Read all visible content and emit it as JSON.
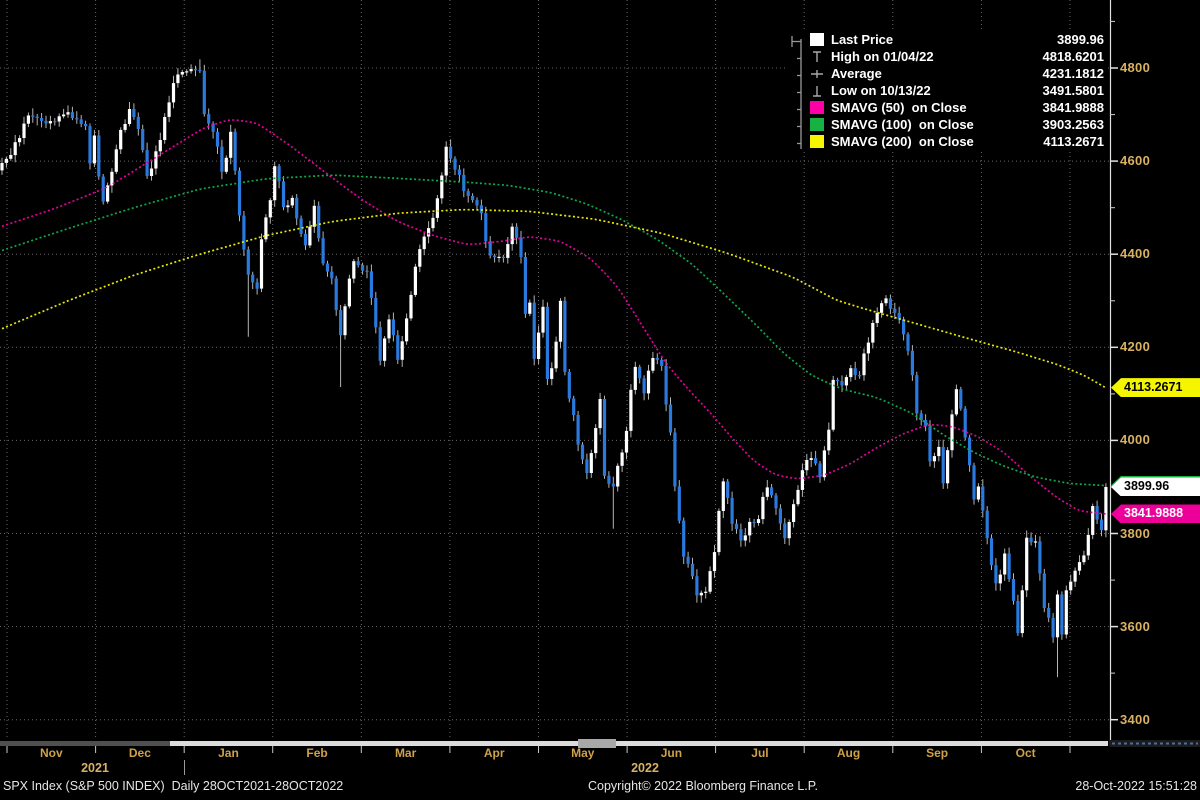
{
  "legend": {
    "rows": [
      {
        "name": "last-price",
        "marker": "square",
        "color": "#ffffff",
        "label": "Last Price",
        "value": "3899.96"
      },
      {
        "name": "high",
        "marker": "high",
        "color": "#a8a8a8",
        "label": "High on 01/04/22",
        "value": "4818.6201"
      },
      {
        "name": "average",
        "marker": "average",
        "color": "#a8a8a8",
        "label": "Average",
        "value": "4231.1812"
      },
      {
        "name": "low",
        "marker": "low",
        "color": "#a8a8a8",
        "label": "Low on 10/13/22",
        "value": "3491.5801"
      },
      {
        "name": "smavg-50",
        "marker": "square",
        "color": "#ff00a8",
        "label": "SMAVG (50)  on Close",
        "value": "3841.9888"
      },
      {
        "name": "smavg-100",
        "marker": "square",
        "color": "#17b144",
        "label": "SMAVG (100)  on Close",
        "value": "3903.2563"
      },
      {
        "name": "smavg-200",
        "marker": "square",
        "color": "#f5f500",
        "label": "SMAVG (200)  on Close",
        "value": "4113.2671"
      }
    ]
  },
  "y_axis": {
    "color": "#d9b163",
    "major_values": [
      4800,
      4600,
      4400,
      4200,
      4000,
      3800,
      3600,
      3400
    ],
    "minor_values": [
      4900,
      4700,
      4500,
      4300,
      4100,
      3900,
      3700,
      3500
    ]
  },
  "x_axis": {
    "month_color": "#cfa14a",
    "year_color": "#d9b163",
    "months": [
      "Nov",
      "Dec",
      "Jan",
      "Feb",
      "Mar",
      "Apr",
      "May",
      "Jun",
      "Jul",
      "Aug",
      "Sep",
      "Oct"
    ],
    "years": [
      {
        "label": "2021"
      },
      {
        "label": "2022"
      }
    ]
  },
  "price_tags": [
    {
      "name": "sma200-price-tag",
      "text": "4113.2671",
      "value": 4113.2671,
      "bg": "#f5f500",
      "fg": "#000000"
    },
    {
      "name": "sma100-price-tag",
      "text": "3903.2563",
      "value": 3903.2563,
      "bg": "#17b144",
      "fg": "#000000"
    },
    {
      "name": "last-price-tag",
      "text": "3899.96",
      "value": 3899.96,
      "bg": "#ffffff",
      "fg": "#000000"
    },
    {
      "name": "sma50-price-tag",
      "text": "3841.9888",
      "value": 3841.9888,
      "bg": "#ec0099",
      "fg": "#ffffff"
    }
  ],
  "footer": {
    "symbol": "SPX Index (S&P 500 INDEX)",
    "range": "Daily 28OCT2021-28OCT2022",
    "copyright": "Copyright© 2022 Bloomberg Finance L.P.",
    "timestamp": "28-Oct-2022 15:51:28"
  },
  "chart_data": {
    "type": "candlestick",
    "title": "SPX Index (S&P 500 INDEX) Daily 28OCT2021-28OCT2022",
    "last_price": 3899.96,
    "high": {
      "date": "01/04/22",
      "value": 4818.6201
    },
    "average": 4231.1812,
    "low": {
      "date": "10/13/22",
      "value": 3491.5801
    },
    "n_days": 252,
    "ylim": [
      3355,
      4946
    ],
    "y_gridlines": [
      4800,
      4600,
      4400,
      4200,
      4000,
      3800,
      3600,
      3400
    ],
    "up_color": "#ffffff",
    "down_color": "#2979de",
    "wick_color": "#b5b5b5",
    "close_anchors": [
      [
        0,
        4596
      ],
      [
        2,
        4613
      ],
      [
        6,
        4698
      ],
      [
        10,
        4681
      ],
      [
        15,
        4705
      ],
      [
        19,
        4675
      ],
      [
        20,
        4595
      ],
      [
        21,
        4655
      ],
      [
        22,
        4567
      ],
      [
        23,
        4513
      ],
      [
        25,
        4577
      ],
      [
        27,
        4667
      ],
      [
        29,
        4712
      ],
      [
        31,
        4669
      ],
      [
        33,
        4568
      ],
      [
        35,
        4621
      ],
      [
        38,
        4726
      ],
      [
        40,
        4786
      ],
      [
        42,
        4793
      ],
      [
        44,
        4796
      ],
      [
        45,
        4794
      ],
      [
        46,
        4701
      ],
      [
        48,
        4663
      ],
      [
        50,
        4577
      ],
      [
        52,
        4663
      ],
      [
        54,
        4483
      ],
      [
        55,
        4410
      ],
      [
        56,
        4356
      ],
      [
        58,
        4326
      ],
      [
        59,
        4432
      ],
      [
        61,
        4516
      ],
      [
        62,
        4589
      ],
      [
        64,
        4501
      ],
      [
        66,
        4521
      ],
      [
        67,
        4477
      ],
      [
        69,
        4419
      ],
      [
        71,
        4504
      ],
      [
        73,
        4380
      ],
      [
        75,
        4348
      ],
      [
        77,
        4226
      ],
      [
        78,
        4288
      ],
      [
        80,
        4385
      ],
      [
        83,
        4363
      ],
      [
        84,
        4306
      ],
      [
        86,
        4171
      ],
      [
        88,
        4260
      ],
      [
        90,
        4173
      ],
      [
        92,
        4262
      ],
      [
        95,
        4411
      ],
      [
        97,
        4456
      ],
      [
        99,
        4520
      ],
      [
        101,
        4631
      ],
      [
        103,
        4582
      ],
      [
        106,
        4525
      ],
      [
        109,
        4488
      ],
      [
        111,
        4397
      ],
      [
        114,
        4392
      ],
      [
        116,
        4459
      ],
      [
        118,
        4394
      ],
      [
        119,
        4272
      ],
      [
        120,
        4296
      ],
      [
        121,
        4175
      ],
      [
        123,
        4287
      ],
      [
        124,
        4132
      ],
      [
        125,
        4155
      ],
      [
        127,
        4300
      ],
      [
        128,
        4147
      ],
      [
        131,
        3991
      ],
      [
        133,
        3930
      ],
      [
        136,
        4089
      ],
      [
        137,
        3924
      ],
      [
        139,
        3901
      ],
      [
        141,
        3974
      ],
      [
        144,
        4158
      ],
      [
        146,
        4101
      ],
      [
        148,
        4177
      ],
      [
        150,
        4160
      ],
      [
        152,
        4017
      ],
      [
        153,
        3901
      ],
      [
        155,
        3750
      ],
      [
        156,
        3735
      ],
      [
        158,
        3667
      ],
      [
        160,
        3675
      ],
      [
        162,
        3760
      ],
      [
        164,
        3912
      ],
      [
        166,
        3821
      ],
      [
        168,
        3785
      ],
      [
        170,
        3825
      ],
      [
        172,
        3831
      ],
      [
        174,
        3899
      ],
      [
        176,
        3854
      ],
      [
        178,
        3790
      ],
      [
        180,
        3863
      ],
      [
        182,
        3936
      ],
      [
        184,
        3962
      ],
      [
        186,
        3921
      ],
      [
        188,
        4023
      ],
      [
        189,
        4130
      ],
      [
        191,
        4118
      ],
      [
        193,
        4155
      ],
      [
        195,
        4140
      ],
      [
        197,
        4210
      ],
      [
        199,
        4274
      ],
      [
        201,
        4305
      ],
      [
        203,
        4274
      ],
      [
        205,
        4228
      ],
      [
        207,
        4140
      ],
      [
        208,
        4058
      ],
      [
        210,
        4030
      ],
      [
        211,
        3955
      ],
      [
        213,
        3986
      ],
      [
        214,
        3908
      ],
      [
        215,
        3979
      ],
      [
        217,
        4110
      ],
      [
        219,
        4006
      ],
      [
        221,
        3873
      ],
      [
        222,
        3901
      ],
      [
        224,
        3790
      ],
      [
        226,
        3693
      ],
      [
        228,
        3757
      ],
      [
        230,
        3655
      ],
      [
        231,
        3586
      ],
      [
        232,
        3678
      ],
      [
        233,
        3791
      ],
      [
        235,
        3783
      ],
      [
        237,
        3640
      ],
      [
        239,
        3577
      ],
      [
        240,
        3669
      ],
      [
        241,
        3583
      ],
      [
        242,
        3678
      ],
      [
        244,
        3720
      ],
      [
        246,
        3753
      ],
      [
        247,
        3797
      ],
      [
        248,
        3859
      ],
      [
        249,
        3830
      ],
      [
        250,
        3807
      ],
      [
        251,
        3899.96
      ]
    ],
    "wick_overrides": {
      "45": {
        "high": 4818.6201
      },
      "56": {
        "low": 4222.6
      },
      "77": {
        "low": 4114.7
      },
      "139": {
        "low": 3810.3
      },
      "240": {
        "low": 3491.5801
      }
    },
    "sma": [
      {
        "name": "SMAVG (50) on Close",
        "period": 50,
        "color": "#e6009e",
        "last": 3841.9888,
        "points": [
          [
            0,
            4460
          ],
          [
            12,
            4498
          ],
          [
            24,
            4544
          ],
          [
            36,
            4614
          ],
          [
            46,
            4672
          ],
          [
            52,
            4690
          ],
          [
            58,
            4682
          ],
          [
            66,
            4630
          ],
          [
            74,
            4572
          ],
          [
            82,
            4516
          ],
          [
            90,
            4470
          ],
          [
            98,
            4440
          ],
          [
            106,
            4420
          ],
          [
            114,
            4428
          ],
          [
            120,
            4438
          ],
          [
            127,
            4428
          ],
          [
            134,
            4390
          ],
          [
            140,
            4330
          ],
          [
            146,
            4240
          ],
          [
            151,
            4165
          ],
          [
            156,
            4110
          ],
          [
            161,
            4060
          ],
          [
            166,
            4005
          ],
          [
            171,
            3955
          ],
          [
            176,
            3925
          ],
          [
            181,
            3917
          ],
          [
            187,
            3925
          ],
          [
            193,
            3950
          ],
          [
            199,
            3985
          ],
          [
            205,
            4015
          ],
          [
            211,
            4035
          ],
          [
            216,
            4030
          ],
          [
            222,
            4008
          ],
          [
            228,
            3973
          ],
          [
            234,
            3921
          ],
          [
            240,
            3876
          ],
          [
            245,
            3848
          ],
          [
            251,
            3842
          ]
        ]
      },
      {
        "name": "SMAVG (100) on Close",
        "period": 100,
        "color": "#0fa84a",
        "last": 3903.2563,
        "points": [
          [
            0,
            4408
          ],
          [
            15,
            4455
          ],
          [
            30,
            4500
          ],
          [
            45,
            4540
          ],
          [
            60,
            4562
          ],
          [
            75,
            4570
          ],
          [
            90,
            4563
          ],
          [
            105,
            4555
          ],
          [
            115,
            4548
          ],
          [
            125,
            4532
          ],
          [
            133,
            4508
          ],
          [
            141,
            4474
          ],
          [
            149,
            4432
          ],
          [
            157,
            4378
          ],
          [
            164,
            4316
          ],
          [
            171,
            4252
          ],
          [
            178,
            4185
          ],
          [
            184,
            4140
          ],
          [
            191,
            4110
          ],
          [
            199,
            4092
          ],
          [
            207,
            4058
          ],
          [
            214,
            4012
          ],
          [
            221,
            3974
          ],
          [
            228,
            3944
          ],
          [
            235,
            3921
          ],
          [
            243,
            3907
          ],
          [
            251,
            3903
          ]
        ]
      },
      {
        "name": "SMAVG (200) on Close",
        "period": 200,
        "color": "#e8e800",
        "last": 4113.2671,
        "points": [
          [
            0,
            4240
          ],
          [
            15,
            4300
          ],
          [
            30,
            4355
          ],
          [
            45,
            4400
          ],
          [
            60,
            4440
          ],
          [
            75,
            4470
          ],
          [
            90,
            4488
          ],
          [
            105,
            4496
          ],
          [
            120,
            4492
          ],
          [
            135,
            4475
          ],
          [
            150,
            4445
          ],
          [
            165,
            4402
          ],
          [
            180,
            4350
          ],
          [
            190,
            4300
          ],
          [
            200,
            4272
          ],
          [
            210,
            4245
          ],
          [
            220,
            4218
          ],
          [
            230,
            4192
          ],
          [
            240,
            4163
          ],
          [
            246,
            4140
          ],
          [
            251,
            4113
          ]
        ]
      }
    ]
  }
}
